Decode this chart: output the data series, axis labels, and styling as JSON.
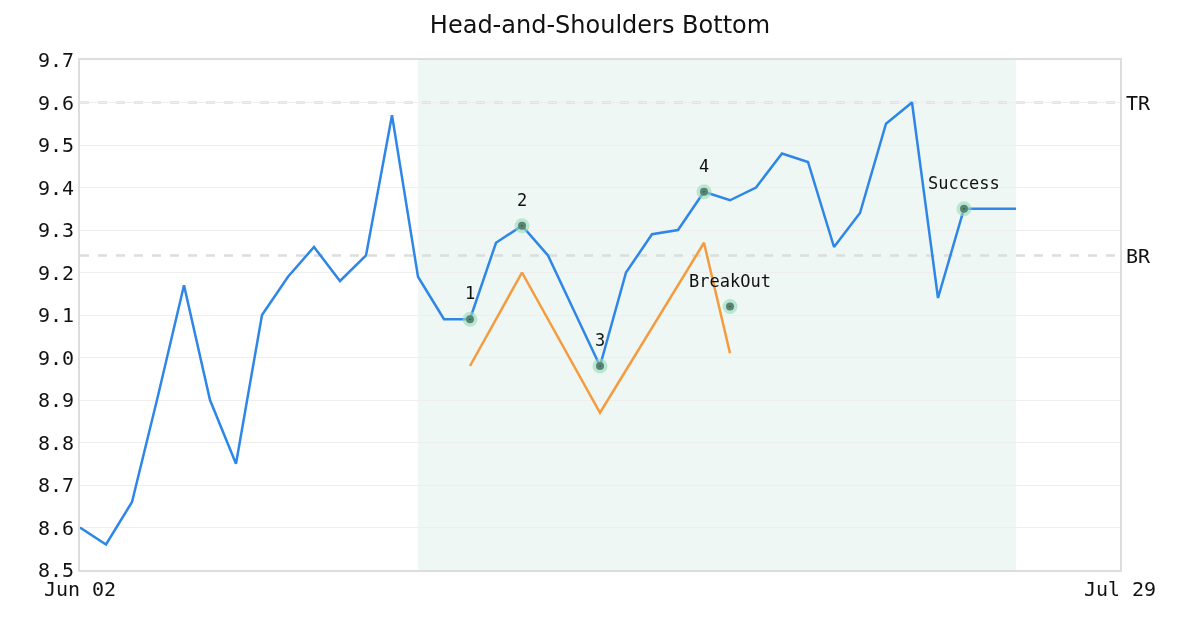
{
  "chart_data": {
    "type": "line",
    "title": "Head-and-Shoulders Bottom",
    "categories": [
      "Jun 02",
      null,
      null,
      null,
      null,
      null,
      null,
      null,
      null,
      null,
      null,
      null,
      null,
      null,
      null,
      null,
      null,
      null,
      null,
      null,
      null,
      null,
      null,
      null,
      null,
      null,
      null,
      null,
      null,
      null,
      null,
      null,
      null,
      null,
      null,
      null,
      null,
      null,
      null,
      null,
      "Jul 29"
    ],
    "ylim": [
      8.5,
      9.7
    ],
    "yticks": [
      8.5,
      8.6,
      8.7,
      8.8,
      8.9,
      {
        "value": 9.0,
        "label": "9.0"
      },
      9.1,
      9.2,
      9.3,
      9.4,
      9.5,
      9.6,
      9.7
    ],
    "grid": "y",
    "series": [
      {
        "color": "#2e86e6",
        "values": [
          8.6,
          8.56,
          8.66,
          8.91,
          9.17,
          8.9,
          8.75,
          9.1,
          9.19,
          9.26,
          9.18,
          9.24,
          9.57,
          9.19,
          9.09,
          9.09,
          9.27,
          9.31,
          9.24,
          9.11,
          8.98,
          9.2,
          9.29,
          9.3,
          9.39,
          9.37,
          9.4,
          9.48,
          9.46,
          9.26,
          9.34,
          9.55,
          9.6,
          9.14,
          9.35,
          9.35,
          9.35,
          null,
          null,
          null,
          null
        ]
      },
      {
        "color": "#f59b3e",
        "values": [
          null,
          null,
          null,
          null,
          null,
          null,
          null,
          null,
          null,
          null,
          null,
          null,
          null,
          null,
          null,
          8.98,
          null,
          9.2,
          null,
          null,
          8.87,
          null,
          null,
          null,
          9.27,
          9.01,
          null,
          null,
          null,
          null,
          null,
          null,
          null,
          null,
          null,
          null,
          null,
          null,
          null,
          null,
          null
        ]
      },
      {
        "type": "scatter",
        "color": "#000000",
        "marker": "circle",
        "values": [
          null,
          null,
          null,
          null,
          null,
          null,
          null,
          null,
          null,
          null,
          null,
          null,
          null,
          null,
          null,
          9.09,
          null,
          9.31,
          null,
          null,
          8.98,
          null,
          null,
          null,
          9.39,
          9.12,
          null,
          null,
          null,
          null,
          null,
          null,
          null,
          null,
          9.35,
          null,
          null,
          null,
          null,
          null,
          null
        ]
      }
    ],
    "annotations": [
      "1",
      "2",
      "3",
      "4",
      "BreakOut",
      "Success"
    ],
    "ref_lines": [
      {
        "axis": "y",
        "value": 9.6,
        "label": "TR",
        "color": "#dddddd",
        "line_style": "dashed"
      },
      {
        "axis": "y",
        "value": 9.24,
        "label": "BR",
        "color": "#dddddd",
        "line_style": "dashed"
      }
    ]
  }
}
